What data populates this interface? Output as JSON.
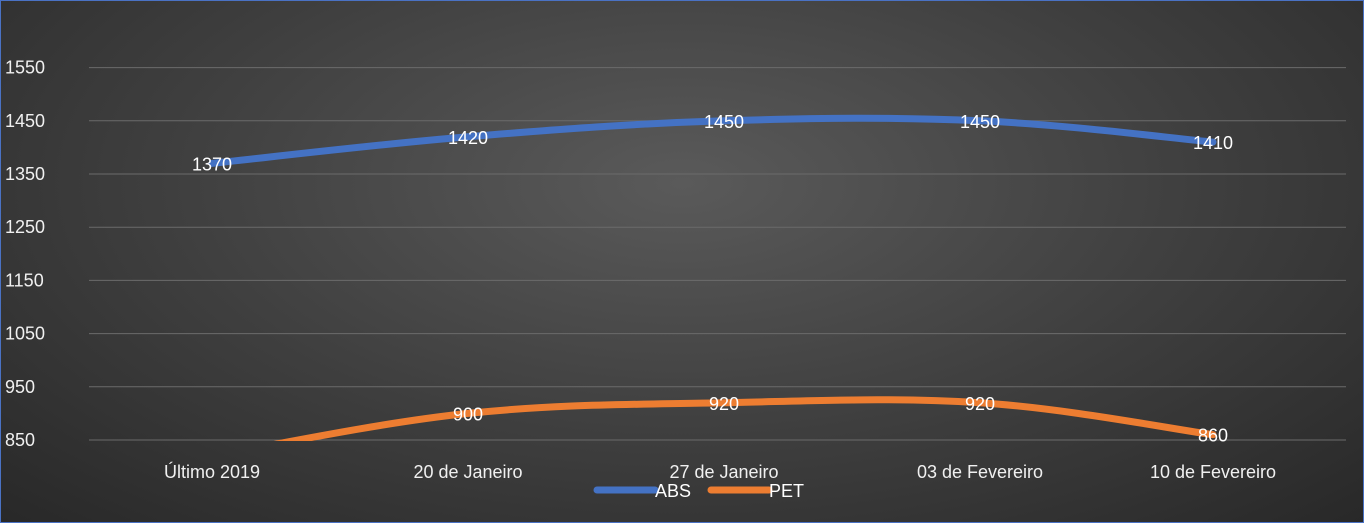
{
  "chart_data": {
    "type": "line",
    "categories": [
      "Último 2019",
      "20 de Janeiro",
      "27 de Janeiro",
      "03 de Fevereiro",
      "10 de Fevereiro"
    ],
    "series": [
      {
        "name": "ABS",
        "color": "#4472c4",
        "values": [
          1370,
          1420,
          1450,
          1450,
          1410
        ]
      },
      {
        "name": "PET",
        "color": "#ed7d31",
        "values": [
          820,
          900,
          920,
          920,
          860
        ]
      }
    ],
    "data_labels": [
      [
        "1370",
        "1420",
        "1450",
        "1450",
        "1410"
      ],
      [
        null,
        "900",
        "920",
        "920",
        "860"
      ]
    ],
    "yticks": [
      "850",
      "950",
      "1050",
      "1150",
      "1250",
      "1350",
      "1450",
      "1550"
    ],
    "ylim": [
      850,
      1600
    ],
    "grid": true,
    "legend_position": "bottom",
    "title": "",
    "xlabel": "",
    "ylabel": ""
  }
}
